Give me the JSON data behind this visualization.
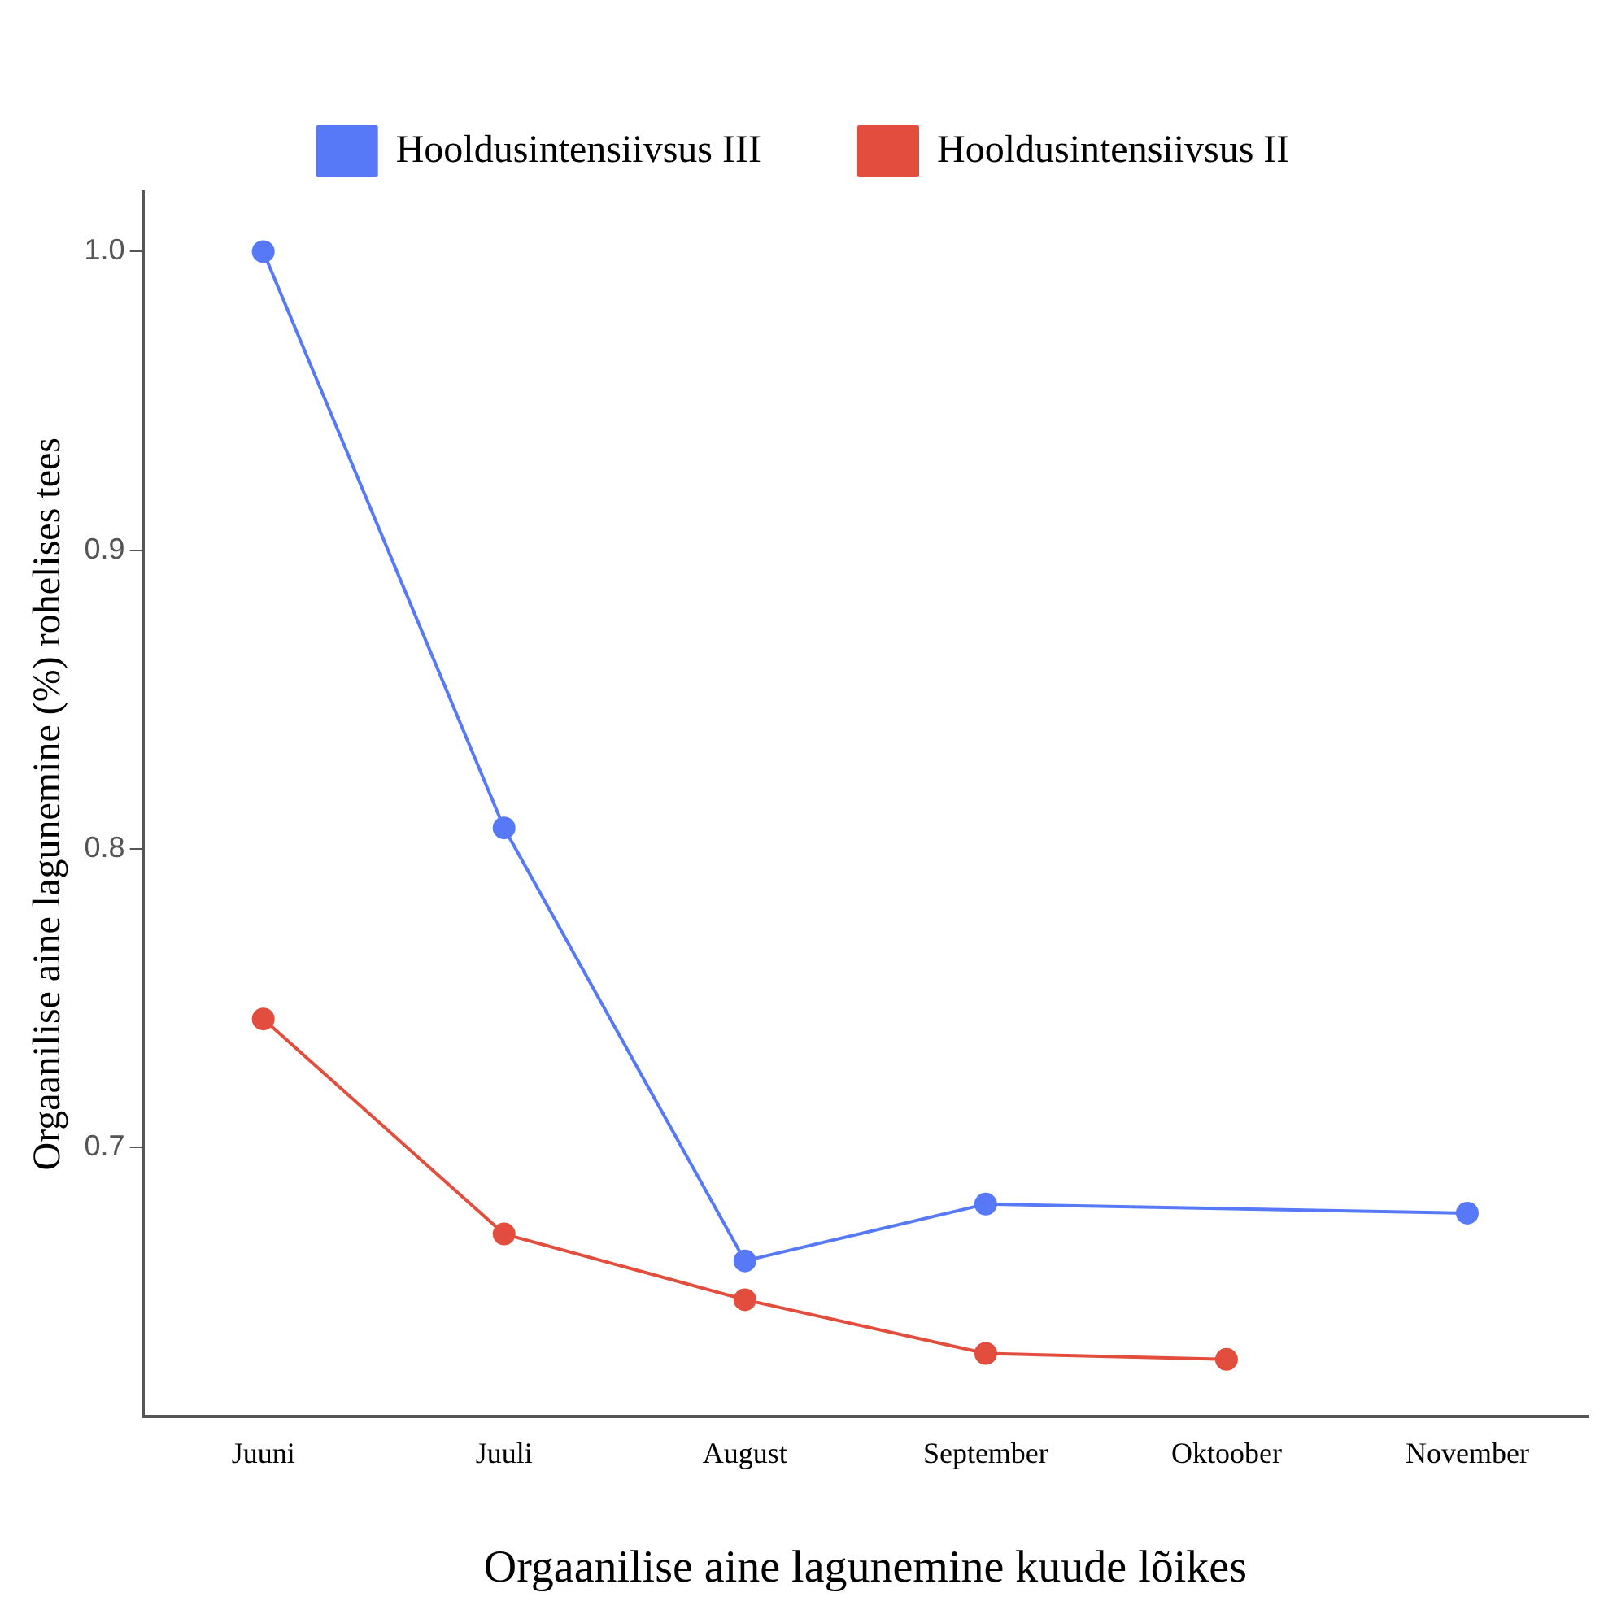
{
  "chart_data": {
    "type": "line",
    "xlabel": "Orgaanilise aine lagunemine kuude lõikes",
    "ylabel": "Orgaanilise aine lagunemine (%) rohelises tees",
    "categories": [
      "Juuni",
      "Juuli",
      "August",
      "September",
      "Oktoober",
      "November"
    ],
    "series": [
      {
        "name": "Hooldusintensiivsus III",
        "color": "#5779f7",
        "values": [
          1.0,
          0.807,
          0.662,
          0.681,
          null,
          0.678
        ]
      },
      {
        "name": "Hooldusintensiivsus II",
        "color": "#e24d3d",
        "values": [
          0.743,
          0.671,
          0.649,
          0.631,
          0.629,
          null
        ]
      }
    ],
    "ylim": [
      0.61,
      1.02
    ],
    "yticks": [
      0.7,
      0.8,
      0.9,
      {
        "value": 1.0,
        "label": "1.0"
      }
    ],
    "grid": false,
    "legend": "top",
    "marker": "circle",
    "line_style": "solid"
  }
}
